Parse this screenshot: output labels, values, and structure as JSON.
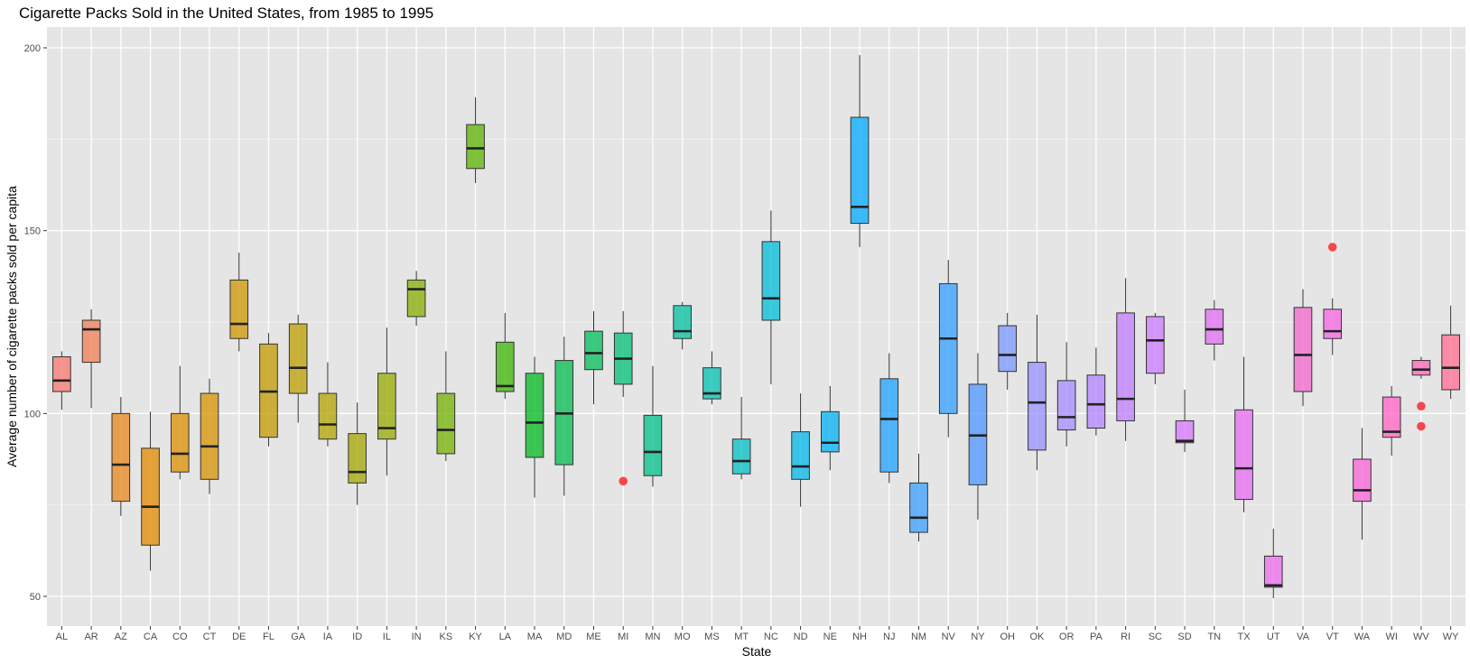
{
  "chart_data": {
    "type": "boxplot",
    "title": "Cigarette Packs Sold in the United States, from 1985 to 1995",
    "xlabel": "State",
    "ylabel": "Average number of cigarette packs sold per capita",
    "ylim": [
      42,
      205
    ],
    "yticks": [
      50,
      100,
      150,
      200
    ],
    "grid": true,
    "legend": "none",
    "outlier_color": "#f8333c",
    "background_color": "#e5e5e5",
    "boxes": [
      {
        "state": "AL",
        "lower": 101,
        "q1": 106,
        "median": 109,
        "q3": 115.5,
        "upper": 117,
        "outliers": [],
        "color": "#f8766d"
      },
      {
        "state": "AR",
        "lower": 101.5,
        "q1": 114,
        "median": 123,
        "q3": 125.5,
        "upper": 128.5,
        "outliers": [],
        "color": "#f27d52"
      },
      {
        "state": "AZ",
        "lower": 72,
        "q1": 76,
        "median": 86,
        "q3": 100,
        "upper": 104.5,
        "outliers": [],
        "color": "#e7861b"
      },
      {
        "state": "CA",
        "lower": 57,
        "q1": 64,
        "median": 74.5,
        "q3": 90.5,
        "upper": 100.5,
        "outliers": [],
        "color": "#e38900"
      },
      {
        "state": "CO",
        "lower": 82,
        "q1": 84,
        "median": 89,
        "q3": 100,
        "upper": 113,
        "outliers": [],
        "color": "#dc8d00"
      },
      {
        "state": "CT",
        "lower": 78,
        "q1": 82,
        "median": 91,
        "q3": 105.5,
        "upper": 109.5,
        "outliers": [],
        "color": "#d59100"
      },
      {
        "state": "DE",
        "lower": 117,
        "q1": 120.5,
        "median": 124.5,
        "q3": 136.5,
        "upper": 144,
        "outliers": [],
        "color": "#cd9600"
      },
      {
        "state": "FL",
        "lower": 91,
        "q1": 93.5,
        "median": 106,
        "q3": 119,
        "upper": 122,
        "outliers": [],
        "color": "#c49a00"
      },
      {
        "state": "GA",
        "lower": 97.5,
        "q1": 105.5,
        "median": 112.5,
        "q3": 124.5,
        "upper": 127,
        "outliers": [],
        "color": "#bb9d00"
      },
      {
        "state": "IA",
        "lower": 91,
        "q1": 93,
        "median": 97,
        "q3": 105.5,
        "upper": 114,
        "outliers": [],
        "color": "#b1a100"
      },
      {
        "state": "ID",
        "lower": 75,
        "q1": 81,
        "median": 84,
        "q3": 94.5,
        "upper": 103,
        "outliers": [],
        "color": "#a3a500"
      },
      {
        "state": "IL",
        "lower": 83,
        "q1": 93,
        "median": 96,
        "q3": 111,
        "upper": 123.5,
        "outliers": [],
        "color": "#97a900"
      },
      {
        "state": "IN",
        "lower": 124,
        "q1": 126.5,
        "median": 134,
        "q3": 136.5,
        "upper": 139,
        "outliers": [],
        "color": "#85ad00"
      },
      {
        "state": "KS",
        "lower": 87,
        "q1": 89,
        "median": 95.5,
        "q3": 105.5,
        "upper": 117,
        "outliers": [],
        "color": "#72b000"
      },
      {
        "state": "KY",
        "lower": 163,
        "q1": 167,
        "median": 172.5,
        "q3": 179,
        "upper": 186.5,
        "outliers": [],
        "color": "#5bb300"
      },
      {
        "state": "LA",
        "lower": 104,
        "q1": 106,
        "median": 107.5,
        "q3": 119.5,
        "upper": 127.5,
        "outliers": [],
        "color": "#39b600"
      },
      {
        "state": "MA",
        "lower": 77,
        "q1": 88,
        "median": 97.5,
        "q3": 111,
        "upper": 115.5,
        "outliers": [],
        "color": "#00b81f"
      },
      {
        "state": "MD",
        "lower": 77.5,
        "q1": 86,
        "median": 100,
        "q3": 114.5,
        "upper": 121,
        "outliers": [],
        "color": "#00bb4e"
      },
      {
        "state": "ME",
        "lower": 102.5,
        "q1": 112,
        "median": 116.5,
        "q3": 122.5,
        "upper": 128,
        "outliers": [],
        "color": "#00bd5c"
      },
      {
        "state": "MI",
        "lower": 104.5,
        "q1": 108,
        "median": 115,
        "q3": 122,
        "upper": 128,
        "outliers": [
          81.5
        ],
        "color": "#00bf74"
      },
      {
        "state": "MN",
        "lower": 80,
        "q1": 83,
        "median": 89.5,
        "q3": 99.5,
        "upper": 113,
        "outliers": [],
        "color": "#00c08b"
      },
      {
        "state": "MO",
        "lower": 117.5,
        "q1": 120.5,
        "median": 122.5,
        "q3": 129.5,
        "upper": 130.5,
        "outliers": [],
        "color": "#00c0a0"
      },
      {
        "state": "MS",
        "lower": 102.5,
        "q1": 104,
        "median": 105.5,
        "q3": 112.5,
        "upper": 117,
        "outliers": [],
        "color": "#00c0b2"
      },
      {
        "state": "MT",
        "lower": 82,
        "q1": 83.5,
        "median": 87,
        "q3": 93,
        "upper": 104.5,
        "outliers": [],
        "color": "#00bfc4"
      },
      {
        "state": "NC",
        "lower": 108,
        "q1": 125.5,
        "median": 131.5,
        "q3": 147,
        "upper": 155.5,
        "outliers": [],
        "color": "#00bcd8"
      },
      {
        "state": "ND",
        "lower": 74.5,
        "q1": 82,
        "median": 85.5,
        "q3": 95,
        "upper": 105.5,
        "outliers": [],
        "color": "#00b7e9"
      },
      {
        "state": "NE",
        "lower": 84.5,
        "q1": 89.5,
        "median": 92,
        "q3": 100.5,
        "upper": 107.5,
        "outliers": [],
        "color": "#00b0f6"
      },
      {
        "state": "NH",
        "lower": 145.5,
        "q1": 152,
        "median": 156.5,
        "q3": 181,
        "upper": 198,
        "outliers": [],
        "color": "#00a9ff"
      },
      {
        "state": "NJ",
        "lower": 81,
        "q1": 84,
        "median": 98.5,
        "q3": 109.5,
        "upper": 116.5,
        "outliers": [],
        "color": "#1ba2ff"
      },
      {
        "state": "NM",
        "lower": 65,
        "q1": 67.5,
        "median": 71.5,
        "q3": 81,
        "upper": 89,
        "outliers": [],
        "color": "#3a9dff"
      },
      {
        "state": "NV",
        "lower": 93.5,
        "q1": 100,
        "median": 120.5,
        "q3": 135.5,
        "upper": 142,
        "outliers": [],
        "color": "#329dff"
      },
      {
        "state": "NY",
        "lower": 71,
        "q1": 80.5,
        "median": 94,
        "q3": 108,
        "upper": 116.5,
        "outliers": [],
        "color": "#4b94ff"
      },
      {
        "state": "OH",
        "lower": 106.5,
        "q1": 111.5,
        "median": 116,
        "q3": 124,
        "upper": 127.5,
        "outliers": [],
        "color": "#7997ff"
      },
      {
        "state": "OK",
        "lower": 84.5,
        "q1": 90,
        "median": 103,
        "q3": 114,
        "upper": 127,
        "outliers": [],
        "color": "#9590ff"
      },
      {
        "state": "OR",
        "lower": 91,
        "q1": 95.5,
        "median": 99,
        "q3": 109,
        "upper": 119.5,
        "outliers": [],
        "color": "#a58aff"
      },
      {
        "state": "PA",
        "lower": 94,
        "q1": 96,
        "median": 102.5,
        "q3": 110.5,
        "upper": 118,
        "outliers": [],
        "color": "#b383ff"
      },
      {
        "state": "RI",
        "lower": 92.5,
        "q1": 98,
        "median": 104,
        "q3": 127.5,
        "upper": 137,
        "outliers": [],
        "color": "#c07cff"
      },
      {
        "state": "SC",
        "lower": 108,
        "q1": 111,
        "median": 120,
        "q3": 126.5,
        "upper": 127.5,
        "outliers": [],
        "color": "#cb7aff"
      },
      {
        "state": "SD",
        "lower": 89.5,
        "q1": 92,
        "median": 92.5,
        "q3": 98,
        "upper": 106.5,
        "outliers": [],
        "color": "#d575fe"
      },
      {
        "state": "TN",
        "lower": 114.5,
        "q1": 119,
        "median": 123,
        "q3": 128.5,
        "upper": 131,
        "outliers": [],
        "color": "#e06ef2"
      },
      {
        "state": "TX",
        "lower": 73,
        "q1": 76.5,
        "median": 85,
        "q3": 101,
        "upper": 115.5,
        "outliers": [],
        "color": "#e76bf3"
      },
      {
        "state": "UT",
        "lower": 49.5,
        "q1": 52.5,
        "median": 53,
        "q3": 61,
        "upper": 68.5,
        "outliers": [],
        "color": "#ec69ef"
      },
      {
        "state": "VA",
        "lower": 102,
        "q1": 106,
        "median": 116,
        "q3": 129,
        "upper": 134,
        "outliers": [],
        "color": "#f166ce"
      },
      {
        "state": "VT",
        "lower": 116,
        "q1": 120.5,
        "median": 122.5,
        "q3": 128.5,
        "upper": 131.5,
        "outliers": [
          145.5
        ],
        "color": "#f564e3"
      },
      {
        "state": "WA",
        "lower": 65.5,
        "q1": 76,
        "median": 79,
        "q3": 87.5,
        "upper": 96,
        "outliers": [],
        "color": "#fb61d7"
      },
      {
        "state": "WI",
        "lower": 88.5,
        "q1": 93.5,
        "median": 95,
        "q3": 104.5,
        "upper": 107.5,
        "outliers": [],
        "color": "#ff61c3"
      },
      {
        "state": "WV",
        "lower": 109.5,
        "q1": 110.5,
        "median": 112,
        "q3": 114.5,
        "upper": 115.5,
        "outliers": [
          102,
          96.5
        ],
        "color": "#ff62bc"
      },
      {
        "state": "WY",
        "lower": 104,
        "q1": 106.5,
        "median": 112.5,
        "q3": 121.5,
        "upper": 129.5,
        "outliers": [],
        "color": "#ff6c91"
      }
    ]
  }
}
